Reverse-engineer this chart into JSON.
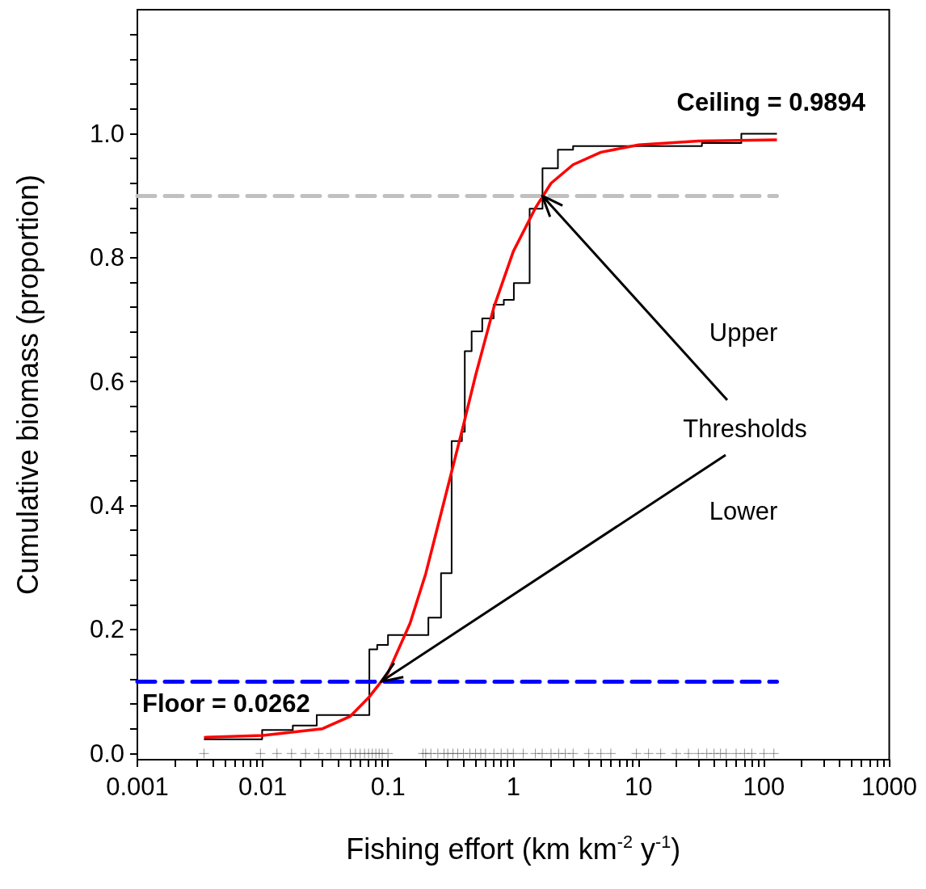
{
  "chart_data": {
    "type": "line",
    "xlabel": "Fishing effort (km km$^{-2}$ y$^{-1}$)",
    "ylabel": "Cumulative biomass (proportion)",
    "log": "x",
    "grid": false,
    "xlim": [
      0.001,
      1000
    ],
    "ylim": [
      -0.01,
      1.2
    ],
    "xticks": [
      0.001,
      {
        "value": 0.002,
        "label": null
      },
      {
        "value": 0.003,
        "label": null
      },
      {
        "value": 0.004,
        "label": null
      },
      {
        "value": 0.005,
        "label": null
      },
      {
        "value": 0.006,
        "label": null
      },
      {
        "value": 0.007,
        "label": null
      },
      {
        "value": 0.008,
        "label": null
      },
      {
        "value": 0.009,
        "label": null
      },
      0.01,
      {
        "value": 0.02,
        "label": null
      },
      {
        "value": 0.03,
        "label": null
      },
      {
        "value": 0.04,
        "label": null
      },
      {
        "value": 0.05,
        "label": null
      },
      {
        "value": 0.06,
        "label": null
      },
      {
        "value": 0.07,
        "label": null
      },
      {
        "value": 0.08,
        "label": null
      },
      {
        "value": 0.09,
        "label": null
      },
      0.1,
      {
        "value": 0.2,
        "label": null
      },
      {
        "value": 0.3,
        "label": null
      },
      {
        "value": 0.4,
        "label": null
      },
      {
        "value": 0.5,
        "label": null
      },
      {
        "value": 0.6,
        "label": null
      },
      {
        "value": 0.7,
        "label": null
      },
      {
        "value": 0.8,
        "label": null
      },
      {
        "value": 0.9,
        "label": null
      },
      1,
      {
        "value": 2,
        "label": null
      },
      {
        "value": 3,
        "label": null
      },
      {
        "value": 4,
        "label": null
      },
      {
        "value": 5,
        "label": null
      },
      {
        "value": 6,
        "label": null
      },
      {
        "value": 7,
        "label": null
      },
      {
        "value": 8,
        "label": null
      },
      {
        "value": 9,
        "label": null
      },
      10,
      {
        "value": 20,
        "label": null
      },
      {
        "value": 30,
        "label": null
      },
      {
        "value": 40,
        "label": null
      },
      {
        "value": 50,
        "label": null
      },
      {
        "value": 60,
        "label": null
      },
      {
        "value": 70,
        "label": null
      },
      {
        "value": 80,
        "label": null
      },
      {
        "value": 90,
        "label": null
      },
      100,
      {
        "value": 200,
        "label": null
      },
      {
        "value": 300,
        "label": null
      },
      {
        "value": 400,
        "label": null
      },
      {
        "value": 500,
        "label": null
      },
      {
        "value": 600,
        "label": null
      },
      {
        "value": 700,
        "label": null
      },
      {
        "value": 800,
        "label": null
      },
      {
        "value": 900,
        "label": null
      },
      1000
    ],
    "yticks": [
      {
        "value": 0,
        "label": "0.0"
      },
      {
        "value": 0.04,
        "label": null
      },
      {
        "value": 0.08,
        "label": null
      },
      {
        "value": 0.12,
        "label": null
      },
      {
        "value": 0.16,
        "label": null
      },
      {
        "value": 0.2,
        "label": "0.2"
      },
      {
        "value": 0.24,
        "label": null
      },
      {
        "value": 0.28,
        "label": null
      },
      {
        "value": 0.32,
        "label": null
      },
      {
        "value": 0.36,
        "label": null
      },
      {
        "value": 0.4,
        "label": "0.4"
      },
      {
        "value": 0.44,
        "label": null
      },
      {
        "value": 0.48,
        "label": null
      },
      {
        "value": 0.52,
        "label": null
      },
      {
        "value": 0.56,
        "label": null
      },
      {
        "value": 0.6,
        "label": "0.6"
      },
      {
        "value": 0.64,
        "label": null
      },
      {
        "value": 0.68,
        "label": null
      },
      {
        "value": 0.72,
        "label": null
      },
      {
        "value": 0.76,
        "label": null
      },
      {
        "value": 0.8,
        "label": "0.8"
      },
      {
        "value": 0.84,
        "label": null
      },
      {
        "value": 0.88,
        "label": null
      },
      {
        "value": 0.92,
        "label": null
      },
      {
        "value": 0.96,
        "label": null
      },
      {
        "value": 1,
        "label": "1.0"
      },
      {
        "value": 1.04,
        "label": null
      },
      {
        "value": 1.08,
        "label": null
      },
      {
        "value": 1.12,
        "label": null
      },
      {
        "value": 1.16,
        "label": null
      }
    ],
    "series": [
      {
        "type": "step",
        "color": "#000000",
        "x": [
          0.0034,
          0.0099,
          0.0174,
          0.027,
          0.071,
          0.082,
          0.1,
          0.21,
          0.265,
          0.322,
          0.389,
          0.41,
          0.465,
          0.565,
          0.697,
          0.84,
          1.01,
          1.35,
          1.71,
          2.27,
          3.0,
          32,
          66,
          127
        ],
        "values": [
          0.023,
          0.038,
          0.045,
          0.062,
          0.168,
          0.175,
          0.191,
          0.219,
          0.291,
          0.504,
          0.519,
          0.649,
          0.681,
          0.702,
          0.724,
          0.732,
          0.759,
          0.879,
          0.944,
          0.974,
          0.98,
          0.985,
          1.0,
          1.0
        ]
      },
      {
        "color": "#ff0000",
        "x": [
          0.0034,
          0.01,
          0.03,
          0.05,
          0.07,
          0.1,
          0.15,
          0.2,
          0.3,
          0.4,
          0.5,
          0.7,
          1,
          1.5,
          2,
          3,
          5,
          10,
          30,
          127
        ],
        "values": [
          0.026,
          0.029,
          0.04,
          0.06,
          0.09,
          0.13,
          0.21,
          0.29,
          0.43,
          0.53,
          0.61,
          0.72,
          0.81,
          0.88,
          0.92,
          0.95,
          0.97,
          0.982,
          0.988,
          0.99
        ]
      },
      {
        "type": "scatter",
        "color": "#555555",
        "marker": "cross",
        "x": [
          0.0034,
          0.0096,
          0.013,
          0.017,
          0.022,
          0.028,
          0.035,
          0.042,
          0.05,
          0.055,
          0.06,
          0.065,
          0.07,
          0.075,
          0.08,
          0.085,
          0.09,
          0.1,
          0.19,
          0.2,
          0.22,
          0.25,
          0.28,
          0.3,
          0.33,
          0.36,
          0.4,
          0.45,
          0.5,
          0.55,
          0.6,
          0.7,
          0.8,
          0.9,
          1.0,
          1.2,
          1.5,
          1.7,
          2,
          2.3,
          2.6,
          3,
          4,
          5,
          6,
          9.6,
          12,
          15,
          20,
          25,
          30,
          35,
          40,
          45,
          50,
          60,
          70,
          80,
          100,
          120
        ],
        "values": [
          0,
          0,
          0,
          0,
          0,
          0,
          0,
          0,
          0,
          0,
          0,
          0,
          0,
          0,
          0,
          0,
          0,
          0,
          0,
          0,
          0,
          0,
          0,
          0,
          0,
          0,
          0,
          0,
          0,
          0,
          0,
          0,
          0,
          0,
          0,
          0,
          0,
          0,
          0,
          0,
          0,
          0,
          0,
          0,
          0,
          0,
          0,
          0,
          0,
          0,
          0,
          0,
          0,
          0,
          0,
          0,
          0,
          0,
          0,
          0
        ]
      }
    ],
    "ref_lines": [
      {
        "axis": "y",
        "value": 0.9,
        "color": "#c0c0c0",
        "line_style": "dashed"
      },
      {
        "axis": "y",
        "value": 0.116,
        "color": "#0000ff",
        "line_style": "dashed"
      }
    ],
    "annotations": [
      "Ceiling = 0.9894",
      "Floor = 0.0262",
      "Upper",
      {
        "text": "Thresholds",
        "x": 1.7,
        "y": 0.9
      },
      "Lower"
    ]
  }
}
